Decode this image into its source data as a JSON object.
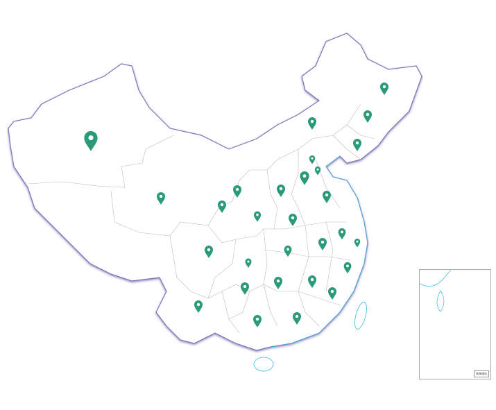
{
  "map": {
    "fill": "#ffffff",
    "border_color": "#8a88c8",
    "province_line_color": "#bbbbbb",
    "coast_color": "#35b8e8",
    "marker_color": "#2a9a78",
    "marker_icon": "map-pin-icon"
  },
  "inset": {
    "label": "南海诸岛"
  }
}
